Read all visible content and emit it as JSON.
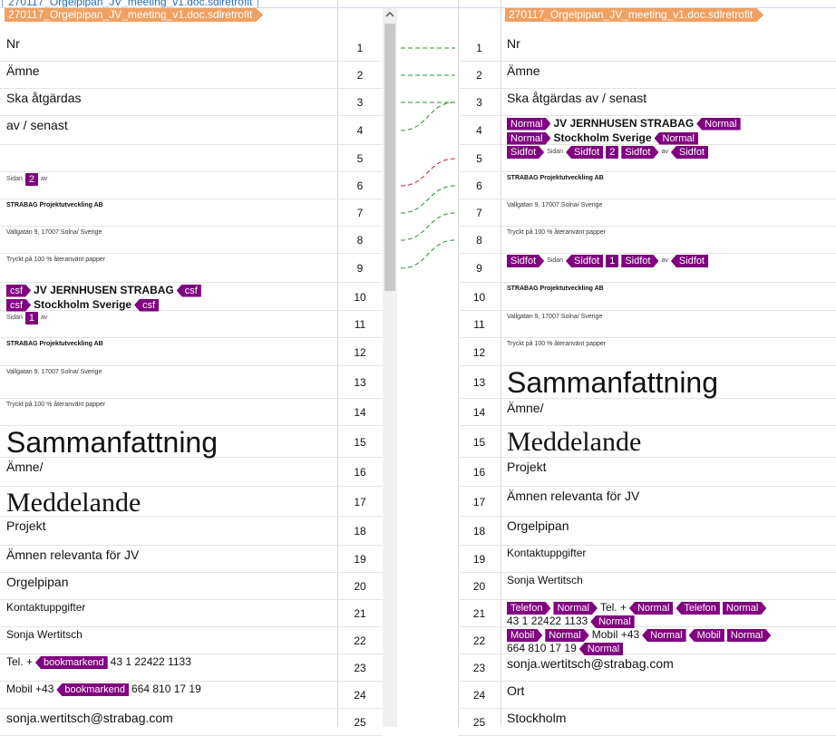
{
  "tab": {
    "title": "270117_Orgelpipan_JV_meeting_v1.doc.sdlretrofit"
  },
  "left": {
    "file": "270117_Orgelpipan_JV_meeting_v1.doc.sdlretrofit",
    "segments": [
      {
        "number": 1,
        "lines": [
          [
            "Nr"
          ]
        ]
      },
      {
        "number": 2,
        "lines": [
          [
            "Ämne"
          ]
        ]
      },
      {
        "number": 3,
        "lines": [
          [
            "Ska åtgärdas"
          ]
        ]
      },
      {
        "number": 4,
        "lines": [
          [
            "av / senast"
          ]
        ]
      },
      {
        "number": 5,
        "lines": []
      },
      {
        "number": 6,
        "lines": [
          [
            "Sidan",
            {
              "tag": 2
            },
            "av"
          ]
        ]
      },
      {
        "number": 7,
        "lines": [
          [
            "STRABAG Projektutveckling AB"
          ]
        ]
      },
      {
        "number": 8,
        "lines": [
          [
            "Vallgatan 9, 17007 Solna/ Sverige"
          ]
        ]
      },
      {
        "number": 9,
        "lines": [
          [
            "Tryckt på 100 % återanvänt papper"
          ]
        ]
      },
      {
        "number": 10,
        "lines": [
          [
            {
              "tag": "csf"
            },
            "JV JERNHUSEN STRABAG",
            {
              "tag": "csf"
            }
          ],
          [
            {
              "tag": "csf"
            },
            "Stockholm Sverige",
            {
              "tag": "csf"
            }
          ]
        ]
      },
      {
        "number": 11,
        "lines": [
          [
            "Sidan",
            {
              "tag": 1
            },
            "av"
          ]
        ]
      },
      {
        "number": 12,
        "lines": [
          [
            "STRABAG Projektutveckling AB"
          ]
        ]
      },
      {
        "number": 13,
        "lines": [
          [
            "Vallgatan 9, 17007 Solna/ Sverige"
          ]
        ]
      },
      {
        "number": 14,
        "lines": [
          [
            "Tryckt på 100 % återanvänt papper"
          ]
        ]
      },
      {
        "number": 15,
        "lines": [
          [
            "Sammanfattning"
          ]
        ]
      },
      {
        "number": 16,
        "lines": [
          [
            "Ämne/"
          ]
        ]
      },
      {
        "number": 17,
        "lines": [
          [
            "Meddelande"
          ]
        ]
      },
      {
        "number": 18,
        "lines": [
          [
            "Projekt"
          ]
        ]
      },
      {
        "number": 19,
        "lines": [
          [
            "Ämnen relevanta för JV"
          ]
        ]
      },
      {
        "number": 20,
        "lines": [
          [
            "Orgelpipan"
          ]
        ]
      },
      {
        "number": 21,
        "lines": [
          [
            "Kontaktuppgifter"
          ]
        ]
      },
      {
        "number": 22,
        "lines": [
          [
            "Sonja Wertitsch"
          ]
        ]
      },
      {
        "number": 23,
        "lines": [
          [
            "Tel. +",
            {
              "tag": "bookmarkend"
            },
            "43 1 22422 1133"
          ]
        ]
      },
      {
        "number": 24,
        "lines": [
          [
            "Mobil +43",
            {
              "tag": "bookmarkend"
            },
            "664 810 17 19"
          ]
        ]
      },
      {
        "number": 25,
        "lines": [
          [
            "sonja.wertitsch@strabag.com"
          ]
        ]
      }
    ]
  },
  "right": {
    "file": "270117_Orgelpipan_JV_meeting_v1.doc.sdlretrofit",
    "segments": [
      {
        "number": 1,
        "lines": [
          [
            "Nr"
          ]
        ]
      },
      {
        "number": 2,
        "lines": [
          [
            "Ämne"
          ]
        ]
      },
      {
        "number": 3,
        "lines": [
          [
            "Ska åtgärdas av / senast"
          ]
        ]
      },
      {
        "number": 4,
        "lines": [
          [
            {
              "tag": "Normal"
            },
            "JV JERNHUSEN STRABAG",
            {
              "tag": "Normal"
            }
          ],
          [
            {
              "tag": "Normal"
            },
            "Stockholm Sverige",
            {
              "tag": "Normal"
            }
          ]
        ]
      },
      {
        "number": 5,
        "lines": [
          [
            {
              "tag": "Sidfot"
            },
            "Sidan",
            {
              "tag": "Sidfot"
            },
            {
              "tag": 2
            },
            {
              "tag": "Sidfot"
            },
            "av",
            {
              "tag": "Sidfot"
            }
          ]
        ]
      },
      {
        "number": 6,
        "lines": [
          [
            "STRABAG Projektutveckling AB"
          ]
        ]
      },
      {
        "number": 7,
        "lines": [
          [
            "Vallgatan 9, 17007 Solna/ Sverige"
          ]
        ]
      },
      {
        "number": 8,
        "lines": [
          [
            "Tryckt på 100 % återanvänt papper"
          ]
        ]
      },
      {
        "number": 9,
        "lines": [
          [
            {
              "tag": "Sidfot"
            },
            "Sidan",
            {
              "tag": "Sidfot"
            },
            {
              "tag": 1
            },
            {
              "tag": "Sidfot"
            },
            "av",
            {
              "tag": "Sidfot"
            }
          ]
        ]
      },
      {
        "number": 10,
        "lines": [
          [
            "STRABAG Projektutveckling AB"
          ]
        ]
      },
      {
        "number": 11,
        "lines": [
          [
            "Vallgatan 9, 17007 Solna/ Sverige"
          ]
        ]
      },
      {
        "number": 12,
        "lines": [
          [
            "Tryckt på 100 % återanvänt papper"
          ]
        ]
      },
      {
        "number": 13,
        "lines": [
          [
            "Sammanfattning"
          ]
        ]
      },
      {
        "number": 14,
        "lines": [
          [
            "Ämne/"
          ]
        ]
      },
      {
        "number": 15,
        "lines": [
          [
            "Meddelande"
          ]
        ]
      },
      {
        "number": 16,
        "lines": [
          [
            "Projekt"
          ]
        ]
      },
      {
        "number": 17,
        "lines": [
          [
            "Ämnen relevanta för JV"
          ]
        ]
      },
      {
        "number": 18,
        "lines": [
          [
            "Orgelpipan"
          ]
        ]
      },
      {
        "number": 19,
        "lines": [
          [
            "Kontaktuppgifter"
          ]
        ]
      },
      {
        "number": 20,
        "lines": [
          [
            "Sonja Wertitsch"
          ]
        ]
      },
      {
        "number": 21,
        "lines": [
          [
            {
              "tag": "Telefon"
            },
            {
              "tag": "Normal"
            },
            "Tel. +",
            {
              "tag": "Normal"
            },
            {
              "tag": "Telefon"
            },
            {
              "tag": "Normal"
            },
            "43 1 22422 1133",
            {
              "tag": "Normal"
            }
          ]
        ]
      },
      {
        "number": 22,
        "lines": [
          [
            {
              "tag": "Mobil"
            },
            {
              "tag": "Normal"
            },
            "Mobil +43",
            {
              "tag": "Normal"
            },
            {
              "tag": "Mobil"
            },
            {
              "tag": "Normal"
            },
            "664 810 17 19",
            {
              "tag": "Normal"
            }
          ]
        ]
      },
      {
        "number": 23,
        "lines": [
          [
            "sonja.wertitsch@strabag.com"
          ]
        ]
      },
      {
        "number": 24,
        "lines": [
          [
            "Ort"
          ]
        ]
      },
      {
        "number": 25,
        "lines": [
          [
            "Stockholm"
          ]
        ]
      }
    ]
  }
}
